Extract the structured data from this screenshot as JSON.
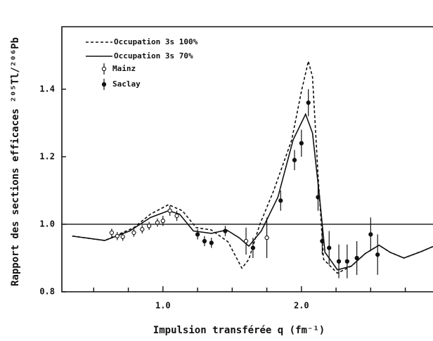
{
  "chart_data": {
    "type": "line",
    "xlabel": "Impulsion transférée  q  (fm⁻¹)",
    "ylabel": "Rapport des sections efficaces ²⁰⁵Tl/²⁰⁶Pb",
    "xlim": [
      0.27,
      2.95
    ],
    "ylim": [
      0.8,
      1.585
    ],
    "xticks": [
      {
        "value": 1,
        "label": "1.0"
      },
      {
        "value": 2,
        "label": "2.0"
      }
    ],
    "xminor_ticks": [
      0.5,
      0.75,
      1.25,
      1.5,
      1.75,
      2.25,
      2.5,
      2.75
    ],
    "yticks": [
      {
        "value": 0.8,
        "label": "0.8"
      },
      {
        "value": 1,
        "label": "1.0"
      },
      {
        "value": 1.2,
        "label": "1.2"
      },
      {
        "value": 1.4,
        "label": "1.4"
      }
    ],
    "hline": 1,
    "series": [
      {
        "name": "Occupation  3s  100%",
        "color": "#111",
        "dash": true,
        "x": [
          0.345,
          0.58,
          0.79,
          0.91,
          1.04,
          1.14,
          1.24,
          1.35,
          1.47,
          1.57,
          1.62,
          1.7,
          1.8,
          1.93,
          2.0,
          2.05,
          2.08,
          2.12,
          2.16,
          2.26,
          2.36,
          2.46,
          2.56,
          2.64,
          2.74,
          2.87,
          2.95
        ],
        "values": [
          0.965,
          0.952,
          0.99,
          1.03,
          1.058,
          1.04,
          0.99,
          0.983,
          0.948,
          0.87,
          0.896,
          1.0,
          1.1,
          1.25,
          1.394,
          1.483,
          1.436,
          1.145,
          0.896,
          0.855,
          0.876,
          0.913,
          0.938,
          0.917,
          0.9,
          0.92,
          0.934
        ]
      },
      {
        "name": "Occupation  3s   70%",
        "color": "#111",
        "dash": false,
        "x": [
          0.345,
          0.58,
          0.76,
          0.91,
          1.04,
          1.12,
          1.22,
          1.35,
          1.46,
          1.55,
          1.62,
          1.71,
          1.83,
          1.94,
          2.03,
          2.08,
          2.13,
          2.17,
          2.26,
          2.36,
          2.46,
          2.56,
          2.64,
          2.74,
          2.87,
          2.95
        ],
        "values": [
          0.965,
          0.952,
          0.98,
          1.02,
          1.04,
          1.03,
          0.98,
          0.973,
          0.983,
          0.96,
          0.935,
          0.98,
          1.08,
          1.25,
          1.326,
          1.27,
          1.083,
          0.917,
          0.865,
          0.876,
          0.913,
          0.938,
          0.917,
          0.9,
          0.92,
          0.934
        ]
      }
    ],
    "points": [
      {
        "name": "Mainz",
        "marker": "open",
        "x": [
          0.63,
          0.67,
          0.71,
          0.79,
          0.85,
          0.9,
          0.96,
          1.0,
          1.05,
          1.1,
          1.6,
          1.75
        ],
        "values": [
          0.975,
          0.965,
          0.963,
          0.975,
          0.985,
          0.995,
          1.005,
          1.01,
          1.04,
          1.025,
          0.95,
          0.96
        ],
        "errors": [
          0.012,
          0.012,
          0.012,
          0.012,
          0.012,
          0.012,
          0.012,
          0.015,
          0.015,
          0.015,
          0.04,
          0.06
        ]
      },
      {
        "name": "Saclay",
        "marker": "filled",
        "x": [
          1.25,
          1.3,
          1.35,
          1.45,
          1.65,
          1.85,
          1.95,
          2.0,
          2.05,
          2.12,
          2.15,
          2.2,
          2.27,
          2.33,
          2.4,
          2.5,
          2.55
        ],
        "values": [
          0.97,
          0.95,
          0.945,
          0.98,
          0.93,
          1.07,
          1.19,
          1.24,
          1.36,
          1.08,
          0.95,
          0.93,
          0.89,
          0.89,
          0.9,
          0.97,
          0.91
        ],
        "errors": [
          0.015,
          0.015,
          0.015,
          0.015,
          0.03,
          0.03,
          0.03,
          0.04,
          0.04,
          0.04,
          0.04,
          0.05,
          0.05,
          0.05,
          0.05,
          0.05,
          0.06
        ]
      }
    ]
  }
}
